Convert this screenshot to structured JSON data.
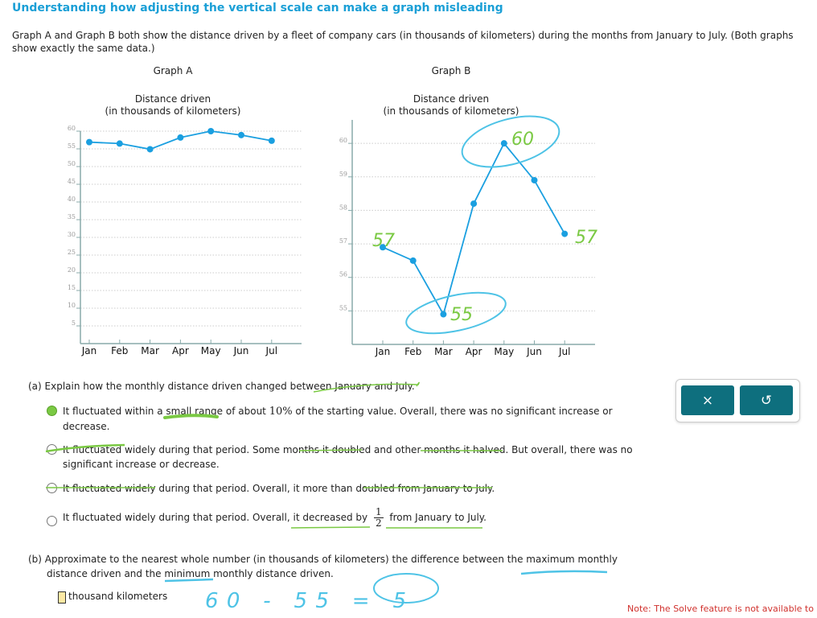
{
  "title": "Understanding how adjusting the vertical scale can make a graph misleading",
  "intro": "Graph A and Graph B both show the distance driven by a fleet of company cars (in thousands of kilometers) during the months from January to July. (Both graphs show exactly the same data.)",
  "chart_data": [
    {
      "type": "line",
      "title": "Graph A",
      "ylabel": "Distance driven\n(in thousands of kilometers)",
      "ylabel_line1": "Distance driven",
      "ylabel_line2": "(in thousands of kilometers)",
      "categories": [
        "Jan",
        "Feb",
        "Mar",
        "Apr",
        "May",
        "Jun",
        "Jul"
      ],
      "values": [
        56.9,
        56.5,
        54.9,
        58.2,
        60.0,
        58.9,
        57.3
      ],
      "ylim": [
        0,
        60
      ],
      "yticks": [
        5,
        10,
        15,
        20,
        25,
        30,
        35,
        40,
        45,
        50,
        55,
        60
      ],
      "grid": true,
      "color": "#1a9fe0"
    },
    {
      "type": "line",
      "title": "Graph B",
      "ylabel_line1": "Distance driven",
      "ylabel_line2": "(in thousands of kilometers)",
      "categories": [
        "Jan",
        "Feb",
        "Mar",
        "Apr",
        "May",
        "Jun",
        "Jul"
      ],
      "values": [
        56.9,
        56.5,
        54.9,
        58.2,
        60.0,
        58.9,
        57.3
      ],
      "ylim": [
        54,
        60.7
      ],
      "yticks": [
        55,
        56,
        57,
        58,
        59,
        60
      ],
      "grid": true,
      "color": "#1a9fe0"
    }
  ],
  "part_a": {
    "question": "(a) Explain how the monthly distance driven changed between January and July.",
    "options": [
      {
        "pre": "It fluctuated within a small range of about ",
        "math": "10%",
        "post": " of the starting value. Overall, there was no significant increase or decrease.",
        "selected": true
      },
      {
        "text": "It fluctuated widely during that period. Some months it doubled and other months it halved. But overall, there was no significant increase or decrease.",
        "selected": false
      },
      {
        "text": "It fluctuated widely during that period. Overall, it more than doubled from January to July.",
        "selected": false
      },
      {
        "pre": "It fluctuated widely during that period. Overall, it decreased by ",
        "num": "1",
        "den": "2",
        "post": " from January to July.",
        "selected": false
      }
    ]
  },
  "part_b": {
    "question": "(b) Approximate to the nearest whole number (in thousands of kilometers) the difference between the maximum monthly distance driven and the minimum monthly distance driven.",
    "unit": "thousand kilometers"
  },
  "buttons": {
    "close": "×",
    "reset": "↺"
  },
  "note": "Note: The Solve feature is not available to stu",
  "annotations": {
    "b_max": "60",
    "b_jan": "57",
    "b_min": "55",
    "b_jul": "57",
    "work": "60 - 55 = 5"
  }
}
